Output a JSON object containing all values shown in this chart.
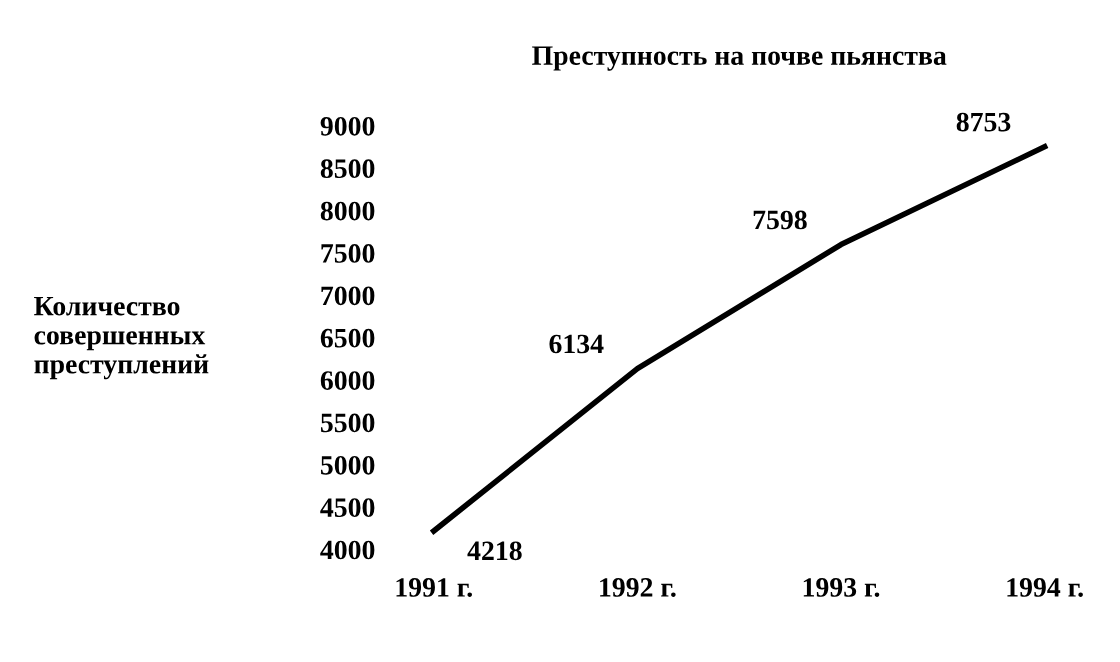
{
  "chart_data": {
    "type": "line",
    "title": "Преступность на почве пьянства",
    "ylabel": "Количество\nсовершенных\nпреступлений",
    "categories": [
      "1991 г.",
      "1992 г.",
      "1993 г.",
      "1994 г."
    ],
    "series": [
      {
        "color": "#000000",
        "values": [
          4218,
          6134,
          7598,
          8753
        ]
      }
    ],
    "ylim": [
      4000,
      9000
    ],
    "yticks": [
      4000,
      4500,
      5000,
      5500,
      6000,
      6500,
      7000,
      7500,
      8000,
      8500,
      9000
    ],
    "data_labels": true,
    "grid": false,
    "legend": false,
    "marker": "none",
    "line_style": "solid"
  }
}
